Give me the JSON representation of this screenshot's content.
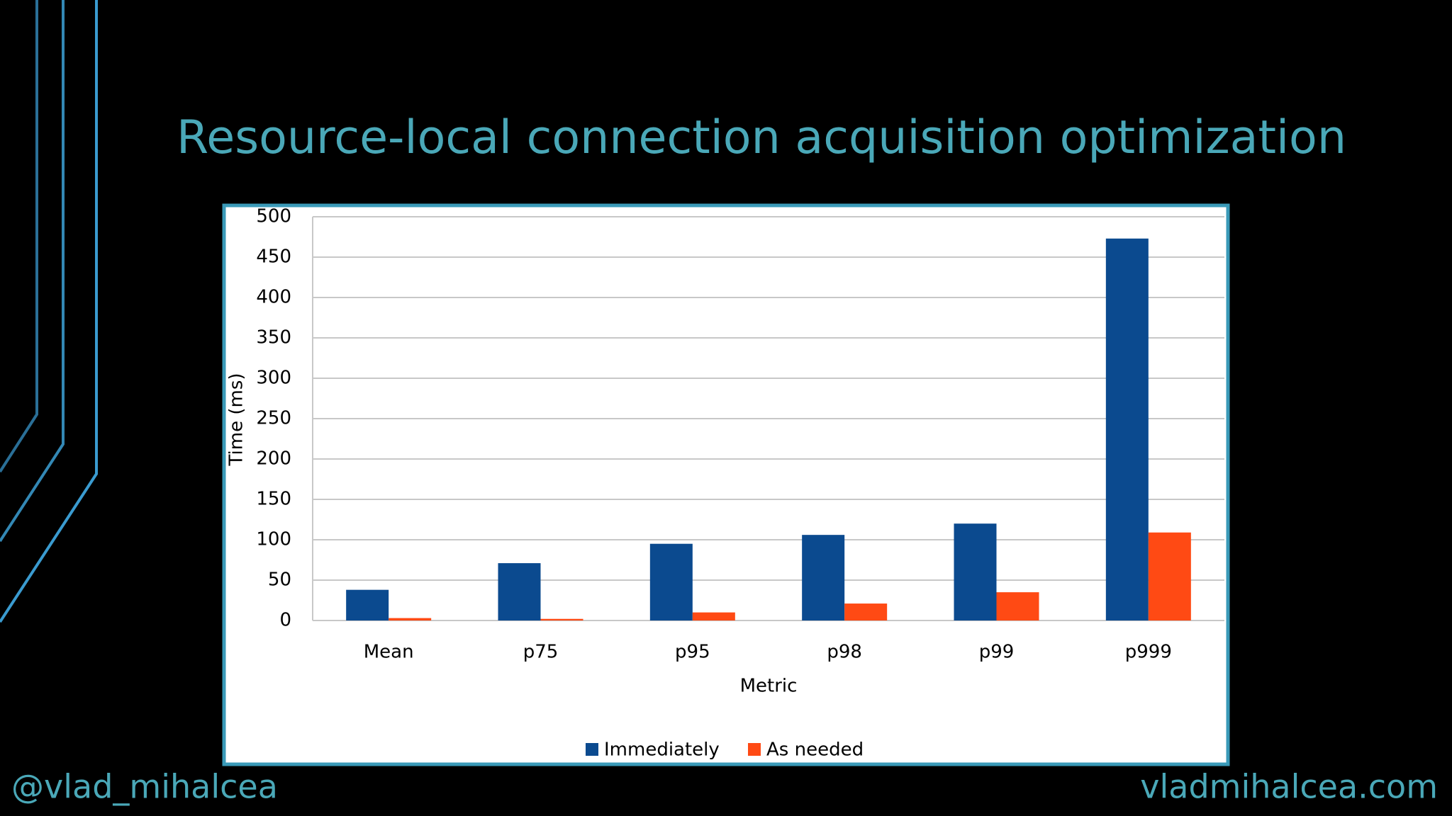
{
  "slide": {
    "title": "Resource-local connection acquisition optimization",
    "footer_left": "@vlad_mihalcea",
    "footer_right": "vladmihalcea.com"
  },
  "chart_data": {
    "type": "bar",
    "categories": [
      "Mean",
      "p75",
      "p95",
      "p98",
      "p99",
      "p999"
    ],
    "series": [
      {
        "name": "Immediately",
        "color": "#0b4a8f",
        "values": [
          38,
          71,
          95,
          106,
          120,
          473
        ]
      },
      {
        "name": "As needed",
        "color": "#ff4a14",
        "values": [
          3,
          2,
          10,
          21,
          35,
          109
        ]
      }
    ],
    "xlabel": "Metric",
    "ylabel": "Time (ms)",
    "ylim": [
      0,
      500
    ],
    "yticks": [
      0,
      50,
      100,
      150,
      200,
      250,
      300,
      350,
      400,
      450,
      500
    ],
    "grid": true,
    "legend": "bottom"
  }
}
